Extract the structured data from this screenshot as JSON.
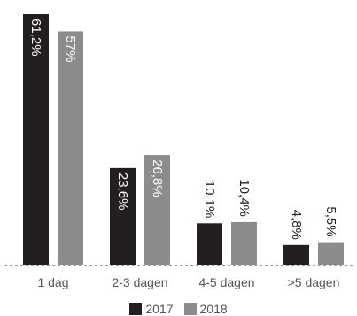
{
  "chart_data": {
    "type": "bar",
    "categories": [
      "1 dag",
      "2-3 dagen",
      "4-5 dagen",
      ">5 dagen"
    ],
    "series": [
      {
        "name": "2017",
        "values": [
          61.2,
          23.6,
          10.1,
          4.8
        ],
        "labels": [
          "61,2%",
          "23,6%",
          "10,1%",
          "4,8%"
        ],
        "color": "#231f20"
      },
      {
        "name": "2018",
        "values": [
          57,
          26.8,
          10.4,
          5.5
        ],
        "labels": [
          "57%",
          "26,8%",
          "10,4%",
          "5,5%"
        ],
        "color": "#8c8c8c"
      }
    ],
    "title": "",
    "xlabel": "",
    "ylabel": "",
    "ylim": [
      0,
      61.2
    ],
    "legend_position": "bottom",
    "grid": false,
    "label_text_color_inside": "#ffffff",
    "label_text_color_outside": "#231f20",
    "axis_text_color": "#555555"
  }
}
